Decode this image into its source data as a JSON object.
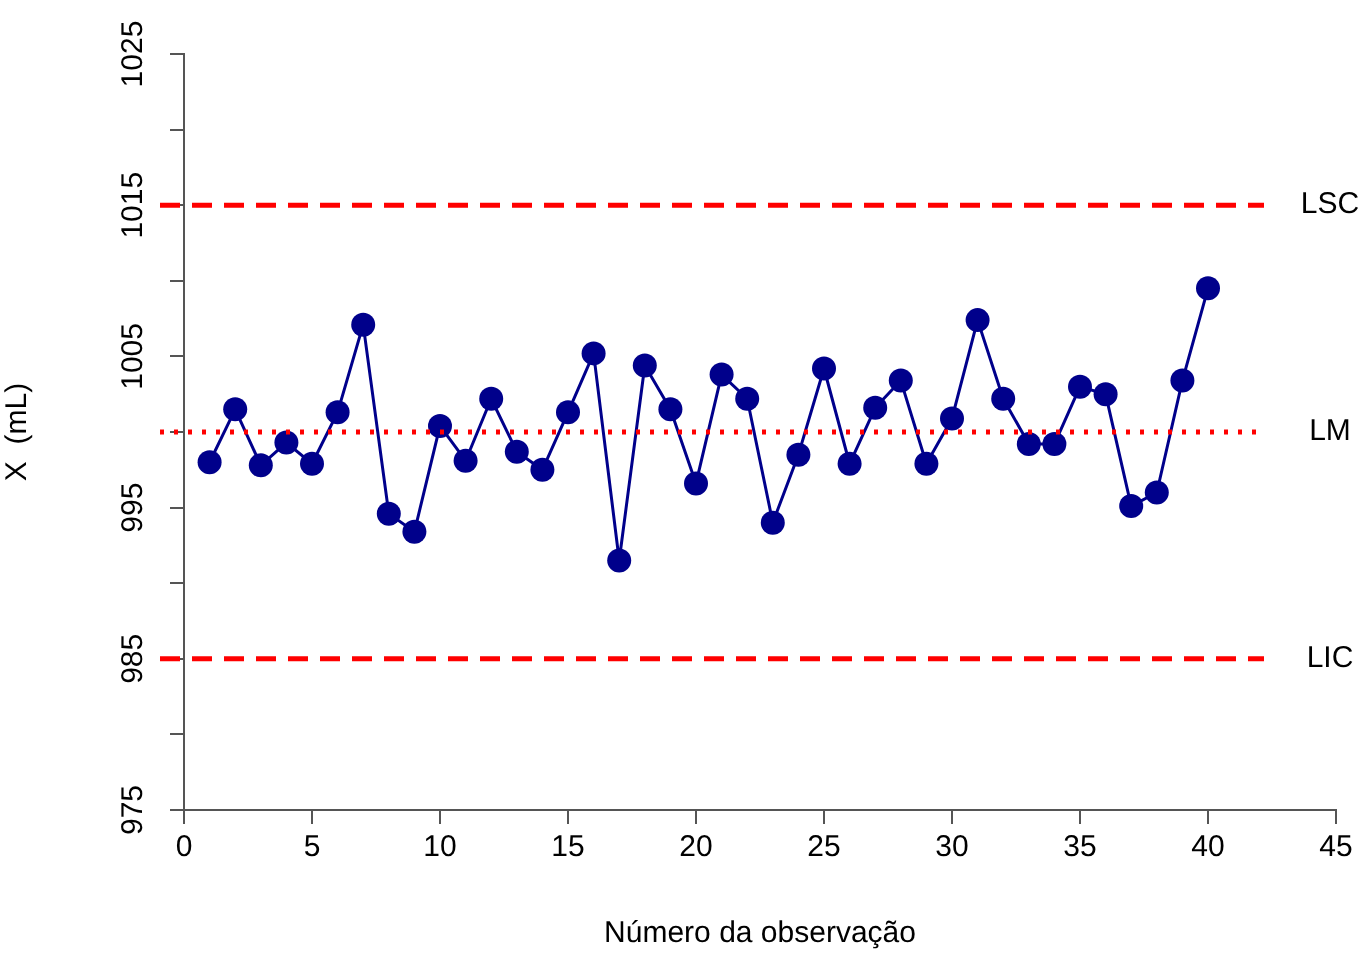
{
  "chart_data": {
    "type": "line",
    "xlabel": "Número da observação",
    "ylabel": "X  (mL)",
    "x": [
      1,
      2,
      3,
      4,
      5,
      6,
      7,
      8,
      9,
      10,
      11,
      12,
      13,
      14,
      15,
      16,
      17,
      18,
      19,
      20,
      21,
      22,
      23,
      24,
      25,
      26,
      27,
      28,
      29,
      30,
      31,
      32,
      33,
      34,
      35,
      36,
      37,
      38,
      39,
      40
    ],
    "series": [
      {
        "color": "#00008b",
        "values": [
          998.0,
          1001.5,
          997.8,
          999.3,
          997.9,
          1001.3,
          1007.1,
          994.6,
          993.4,
          1000.4,
          998.1,
          1002.2,
          998.7,
          997.5,
          1001.3,
          1005.2,
          991.5,
          1004.4,
          1001.5,
          996.6,
          1003.8,
          1002.2,
          994.0,
          998.5,
          1004.2,
          997.9,
          1001.6,
          1003.4,
          997.9,
          1000.9,
          1007.4,
          1002.2,
          999.2,
          999.2,
          1003.0,
          1002.5,
          995.1,
          996.0,
          1003.4,
          1009.5
        ]
      }
    ],
    "xlim": [
      0,
      45
    ],
    "xticks": [
      0,
      5,
      10,
      15,
      20,
      25,
      30,
      35,
      40,
      45
    ],
    "ylim": [
      975,
      1025
    ],
    "yticks": [
      975,
      {
        "value": 980,
        "label": null
      },
      985,
      {
        "value": 990,
        "label": null
      },
      995,
      {
        "value": 1000,
        "label": null
      },
      1005,
      {
        "value": 1010,
        "label": null
      },
      1015,
      {
        "value": 1020,
        "label": null
      },
      1025
    ],
    "ref_lines": [
      {
        "axis": "y",
        "value": 1015,
        "label": "LSC",
        "color": "#ff0000",
        "line_style": "dashed"
      },
      {
        "axis": "y",
        "value": 1000,
        "label": "LM",
        "color": "#ff0000",
        "line_style": "dotted"
      },
      {
        "axis": "y",
        "value": 985,
        "label": "LIC",
        "color": "#ff0000",
        "line_style": "dashed"
      }
    ],
    "marker": "circle",
    "line_style": "solid",
    "grid": false,
    "legend": false
  }
}
